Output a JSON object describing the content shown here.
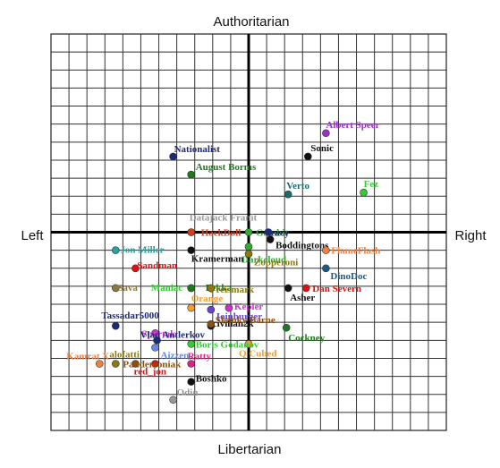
{
  "chart_data": {
    "type": "scatter",
    "title": "",
    "labels": {
      "top": "Authoritarian",
      "bottom": "Libertarian",
      "left": "Left",
      "right": "Right"
    },
    "xlim": [
      -11,
      11
    ],
    "ylim": [
      -11,
      11
    ],
    "grid": true,
    "points": [
      {
        "name": "Albert Speer",
        "x": 4.3,
        "y": 5.5,
        "color": "#9b2fc8"
      },
      {
        "name": "Sonic",
        "x": 3.3,
        "y": 4.2,
        "color": "#111111"
      },
      {
        "name": "Nationalist",
        "x": -4.2,
        "y": 4.2,
        "color": "#1c2a7a"
      },
      {
        "name": "August Borms",
        "x": -3.2,
        "y": 3.2,
        "color": "#1f7a1f"
      },
      {
        "name": "Verto",
        "x": 2.2,
        "y": 2.1,
        "color": "#1a6a6a"
      },
      {
        "name": "Fez",
        "x": 6.4,
        "y": 2.2,
        "color": "#33cc33"
      },
      {
        "name": "Datajack Franit",
        "x": -3.2,
        "y": 0.0,
        "color": "#999999"
      },
      {
        "name": "HackDoll",
        "x": -3.2,
        "y": 0.0,
        "color": "#d0401e"
      },
      {
        "name": "Gambit",
        "x": 0.0,
        "y": 0.0,
        "color": "#33aa33"
      },
      {
        "name": "Tracy",
        "x": 1.1,
        "y": 0.0,
        "color": "#1c2a7a"
      },
      {
        "name": "Boddingtons",
        "x": 1.2,
        "y": -0.4,
        "color": "#111111"
      },
      {
        "name": "Darkcloud",
        "x": 0.0,
        "y": -0.8,
        "color": "#33aa33"
      },
      {
        "name": "Jon Miller",
        "x": -7.4,
        "y": -1.0,
        "color": "#2aa0a0"
      },
      {
        "name": "FlameFlash",
        "x": 4.3,
        "y": -1.0,
        "color": "#f08040"
      },
      {
        "name": "Kramerman",
        "x": -3.2,
        "y": -1.0,
        "color": "#111111"
      },
      {
        "name": "Zopperoni",
        "x": 0.0,
        "y": -1.2,
        "color": "#8a7a10"
      },
      {
        "name": "Sandman",
        "x": -6.3,
        "y": -2.0,
        "color": "#dd1111"
      },
      {
        "name": "DinoDoc",
        "x": 4.3,
        "y": -2.0,
        "color": "#1a5a8a"
      },
      {
        "name": "Sava",
        "x": -7.4,
        "y": -3.1,
        "color": "#8a7a40"
      },
      {
        "name": "Maniac",
        "x": -3.2,
        "y": -3.1,
        "color": "#33cc33"
      },
      {
        "name": "Pekka",
        "x": -3.2,
        "y": -3.1,
        "color": "#1f7a1f"
      },
      {
        "name": "Freismark",
        "x": -2.1,
        "y": -3.1,
        "color": "#8a7a10"
      },
      {
        "name": "Asher",
        "x": 2.2,
        "y": -3.1,
        "color": "#111111"
      },
      {
        "name": "Dan Severn",
        "x": 3.2,
        "y": -3.1,
        "color": "#dd1111"
      },
      {
        "name": "Orange",
        "x": -3.2,
        "y": -4.2,
        "color": "#f0a030"
      },
      {
        "name": "Kepler",
        "x": -1.1,
        "y": -4.2,
        "color": "#cc33cc"
      },
      {
        "name": "Ioinburger",
        "x": -2.1,
        "y": -4.3,
        "color": "#6644cc"
      },
      {
        "name": "Tassadar5000",
        "x": -7.4,
        "y": -5.2,
        "color": "#1c2a7a"
      },
      {
        "name": "civilian2k",
        "x": -2.1,
        "y": -5.2,
        "color": "#111111"
      },
      {
        "name": "Skanky Barne",
        "x": -2.1,
        "y": -5.1,
        "color": "#8a5010"
      },
      {
        "name": "Cockney",
        "x": 2.1,
        "y": -5.3,
        "color": "#1f7a1f"
      },
      {
        "name": "Spartak",
        "x": -5.2,
        "y": -5.6,
        "color": "#cc33cc"
      },
      {
        "name": "Q Cubed",
        "x": 0.0,
        "y": -6.2,
        "color": "#f0a030"
      },
      {
        "name": "Vlad Antlerkov",
        "x": -5.1,
        "y": -6.0,
        "color": "#1c2a7a"
      },
      {
        "name": "Aizzen",
        "x": -5.2,
        "y": -6.4,
        "color": "#6688ee"
      },
      {
        "name": "Boris Godanov",
        "x": -3.2,
        "y": -6.2,
        "color": "#33cc33"
      },
      {
        "name": "Kamrat X",
        "x": -8.3,
        "y": -7.3,
        "color": "#f08040"
      },
      {
        "name": "alofatti",
        "x": -7.4,
        "y": -7.3,
        "color": "#8a7a10"
      },
      {
        "name": "red_jon",
        "x": -5.2,
        "y": -7.3,
        "color": "#dd1111"
      },
      {
        "name": "Pandemoniak",
        "x": -6.3,
        "y": -7.3,
        "color": "#8a5010"
      },
      {
        "name": "Ratty",
        "x": -3.2,
        "y": -7.3,
        "color": "#dd2288"
      },
      {
        "name": "Boshko",
        "x": -3.2,
        "y": -8.3,
        "color": "#111111"
      },
      {
        "name": "Odin",
        "x": -4.2,
        "y": -9.3,
        "color": "#999999"
      }
    ]
  }
}
